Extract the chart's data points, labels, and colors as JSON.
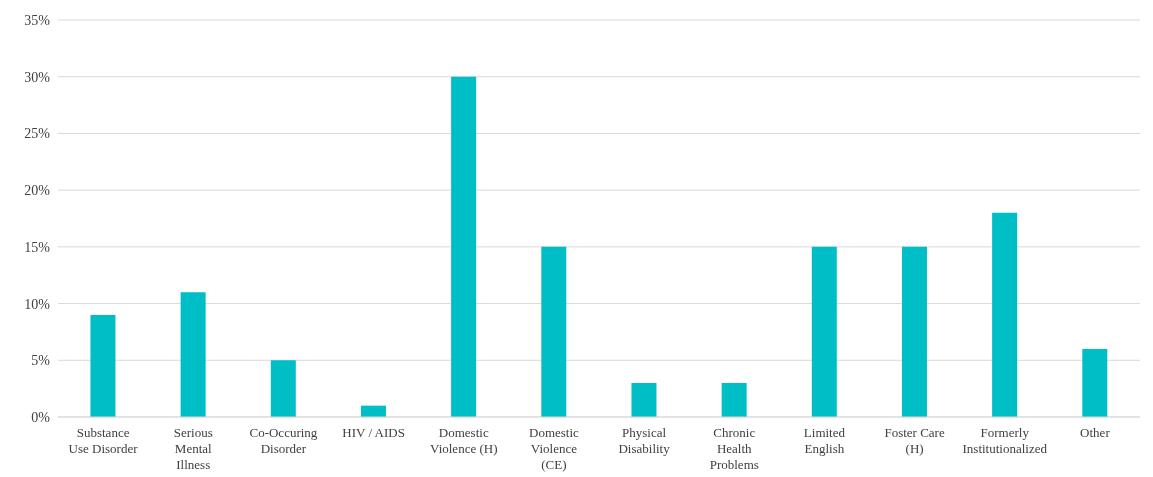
{
  "chart_data": {
    "type": "bar",
    "categories": [
      "Substance Use Disorder",
      "Serious Mental Illness",
      "Co-Occuring Disorder",
      "HIV / AIDS",
      "Domestic Violence (H)",
      "Domestic Violence (CE)",
      "Physical Disability",
      "Chronic Health Problems",
      "Limited English",
      "Foster Care (H)",
      "Formerly Institutionalized",
      "Other"
    ],
    "values": [
      9,
      11,
      5,
      1,
      30,
      15,
      3,
      3,
      15,
      15,
      18,
      6
    ],
    "color": "#00bec6",
    "ylim": [
      0,
      35
    ],
    "yticks": [
      {
        "value": 0,
        "label": "0%"
      },
      {
        "value": 5,
        "label": "5%"
      },
      {
        "value": 10,
        "label": "10%"
      },
      {
        "value": 15,
        "label": "15%"
      },
      {
        "value": 20,
        "label": "20%"
      },
      {
        "value": 25,
        "label": "25%"
      },
      {
        "value": 30,
        "label": "30%"
      },
      {
        "value": 35,
        "label": "35%"
      }
    ],
    "grid": "y",
    "legend": false
  }
}
